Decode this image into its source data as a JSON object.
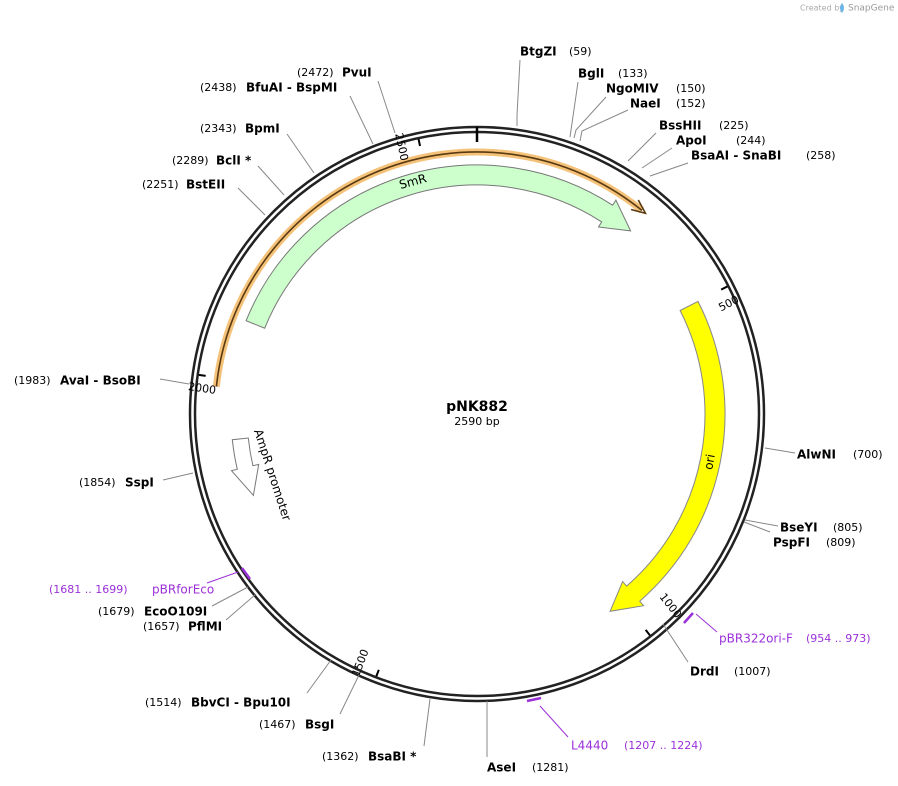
{
  "watermark": {
    "created_by": "Created by",
    "brand": "SnapGene"
  },
  "map": {
    "name": "pNK882",
    "length": "2590 bp",
    "ticks": [
      "500",
      "1000",
      "1500",
      "2000",
      "2500"
    ],
    "features": [
      {
        "label": "SmR"
      },
      {
        "label": "ori"
      },
      {
        "label": "AmpR promoter"
      }
    ],
    "sites": [
      {
        "name": "BtgZI",
        "position": "(59)"
      },
      {
        "name": "BglI",
        "position": "(133)"
      },
      {
        "name": "NgoMIV",
        "position": "(150)"
      },
      {
        "name": "NaeI",
        "position": "(152)"
      },
      {
        "name": "BssHII",
        "position": "(225)"
      },
      {
        "name": "ApoI",
        "position": "(244)"
      },
      {
        "name": "BsaAI  -  SnaBI",
        "position": "(258)"
      },
      {
        "name": "AlwNI",
        "position": "(700)"
      },
      {
        "name": "BseYI",
        "position": "(805)"
      },
      {
        "name": "PspFI",
        "position": "(809)"
      },
      {
        "name": "DrdI",
        "position": "(1007)"
      },
      {
        "name": "AseI",
        "position": "(1281)"
      },
      {
        "name": "BsaBI *",
        "position": "(1362)"
      },
      {
        "name": "BsgI",
        "position": "(1467)"
      },
      {
        "name": "BbvCI  -  Bpu10I",
        "position": "(1514)"
      },
      {
        "name": "PflMI",
        "position": "(1657)"
      },
      {
        "name": "EcoO109I",
        "position": "(1679)"
      },
      {
        "name": "SspI",
        "position": "(1854)"
      },
      {
        "name": "AvaI  -  BsoBI",
        "position": "(1983)"
      },
      {
        "name": "BstEII",
        "position": "(2251)"
      },
      {
        "name": "BclI *",
        "position": "(2289)"
      },
      {
        "name": "BpmI",
        "position": "(2343)"
      },
      {
        "name": "BfuAI  -  BspMI",
        "position": "(2438)"
      },
      {
        "name": "PvuI",
        "position": "(2472)"
      }
    ],
    "primers": [
      {
        "name": "pBRforEco",
        "range": "(1681 .. 1699)"
      },
      {
        "name": "pBR322ori-F",
        "range": "(954 .. 973)"
      },
      {
        "name": "L4440",
        "range": "(1207 .. 1224)"
      }
    ]
  }
}
